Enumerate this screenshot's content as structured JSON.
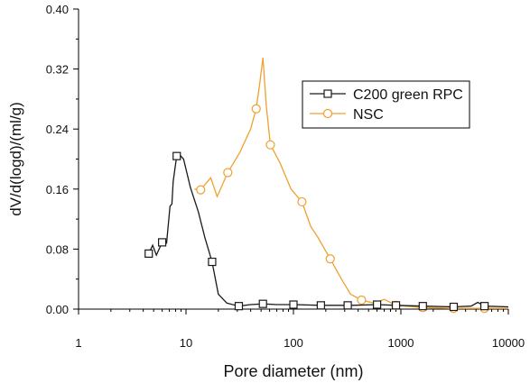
{
  "chart_data": {
    "type": "line",
    "title": "",
    "xlabel": "Pore diameter (nm)",
    "ylabel": "dV/d(logd)/(ml/g)",
    "xscale": "log",
    "xlim": [
      1,
      10000
    ],
    "ylim": [
      0,
      0.4
    ],
    "x_ticks": [
      1,
      10,
      100,
      1000,
      10000
    ],
    "x_tick_labels": [
      "1",
      "10",
      "100",
      "1000",
      "10000"
    ],
    "y_ticks": [
      0.0,
      0.08,
      0.16,
      0.24,
      0.32,
      0.4
    ],
    "y_tick_labels": [
      "0.00",
      "0.08",
      "0.16",
      "0.24",
      "0.32",
      "0.40"
    ],
    "grid": false,
    "legend_position": "top-right",
    "series": [
      {
        "name": "C200 green RPC",
        "color": "#1a1a1a",
        "marker": "square",
        "line": [
          [
            4.5,
            0.074
          ],
          [
            4.9,
            0.085
          ],
          [
            5.3,
            0.072
          ],
          [
            6.0,
            0.089
          ],
          [
            6.6,
            0.088
          ],
          [
            7.1,
            0.137
          ],
          [
            7.4,
            0.14
          ],
          [
            7.6,
            0.17
          ],
          [
            8.2,
            0.204
          ],
          [
            8.8,
            0.205
          ],
          [
            9.5,
            0.2
          ],
          [
            11.0,
            0.162
          ],
          [
            13.0,
            0.13
          ],
          [
            15.0,
            0.095
          ],
          [
            17.5,
            0.063
          ],
          [
            20.0,
            0.02
          ],
          [
            24.0,
            0.008
          ],
          [
            31.0,
            0.004
          ],
          [
            40.0,
            0.006
          ],
          [
            52.0,
            0.007
          ],
          [
            70.0,
            0.006
          ],
          [
            100.0,
            0.006
          ],
          [
            180.0,
            0.005
          ],
          [
            350.0,
            0.005
          ],
          [
            600.0,
            0.006
          ],
          [
            900.0,
            0.005
          ],
          [
            1600.0,
            0.004
          ],
          [
            3100.0,
            0.003
          ],
          [
            4500.0,
            0.004
          ],
          [
            5200.0,
            0.009
          ],
          [
            6000.0,
            0.004
          ],
          [
            10000.0,
            0.003
          ]
        ],
        "markers": [
          [
            4.5,
            0.074
          ],
          [
            6.0,
            0.089
          ],
          [
            8.2,
            0.204
          ],
          [
            17.5,
            0.063
          ],
          [
            31.0,
            0.004
          ],
          [
            52.0,
            0.007
          ],
          [
            100.0,
            0.006
          ],
          [
            180.0,
            0.005
          ],
          [
            320.0,
            0.005
          ],
          [
            600.0,
            0.006
          ],
          [
            900.0,
            0.005
          ],
          [
            1600.0,
            0.004
          ],
          [
            3100.0,
            0.003
          ],
          [
            6000.0,
            0.004
          ]
        ]
      },
      {
        "name": "NSC",
        "color": "#f0a030",
        "marker": "circle",
        "line": [
          [
            12.0,
            0.16
          ],
          [
            13.7,
            0.159
          ],
          [
            15.0,
            0.166
          ],
          [
            17.0,
            0.175
          ],
          [
            19.5,
            0.15
          ],
          [
            24.5,
            0.182
          ],
          [
            32.0,
            0.21
          ],
          [
            40.0,
            0.24
          ],
          [
            45.0,
            0.267
          ],
          [
            48.5,
            0.3
          ],
          [
            52.0,
            0.335
          ],
          [
            56.0,
            0.27
          ],
          [
            61.0,
            0.219
          ],
          [
            75.0,
            0.195
          ],
          [
            95.0,
            0.16
          ],
          [
            120.0,
            0.143
          ],
          [
            145.0,
            0.11
          ],
          [
            170.0,
            0.095
          ],
          [
            220.0,
            0.067
          ],
          [
            280.0,
            0.04
          ],
          [
            340.0,
            0.02
          ],
          [
            430.0,
            0.012
          ],
          [
            560.0,
            0.008
          ],
          [
            700.0,
            0.013
          ],
          [
            900.0,
            0.005
          ],
          [
            1600.0,
            0.002
          ],
          [
            3100.0,
            0.001
          ],
          [
            6000.0,
            0.001
          ],
          [
            10000.0,
            0.001
          ]
        ],
        "markers": [
          [
            13.7,
            0.159
          ],
          [
            24.5,
            0.182
          ],
          [
            45.0,
            0.267
          ],
          [
            61.0,
            0.219
          ],
          [
            120.0,
            0.143
          ],
          [
            220.0,
            0.067
          ],
          [
            430.0,
            0.012
          ],
          [
            900.0,
            0.005
          ],
          [
            1600.0,
            0.002
          ],
          [
            3100.0,
            0.001
          ],
          [
            6000.0,
            0.001
          ]
        ]
      }
    ]
  }
}
